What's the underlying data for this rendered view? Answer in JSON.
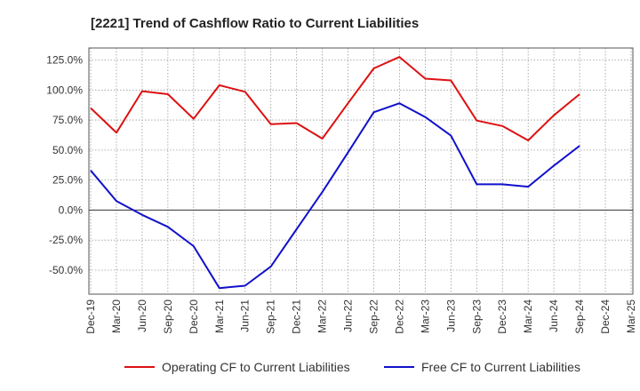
{
  "chart_data": {
    "type": "line",
    "title": "[2221]  Trend of Cashflow Ratio to Current Liabilities",
    "xlabel": "",
    "ylabel": "",
    "x": [
      "Dec-19",
      "Mar-20",
      "Jun-20",
      "Sep-20",
      "Dec-20",
      "Mar-21",
      "Jun-21",
      "Sep-21",
      "Dec-21",
      "Mar-22",
      "Jun-22",
      "Sep-22",
      "Dec-22",
      "Mar-23",
      "Jun-23",
      "Sep-23",
      "Dec-23",
      "Mar-24",
      "Jun-24",
      "Sep-24",
      "Dec-24",
      "Mar-25"
    ],
    "ylim": [
      -70,
      135
    ],
    "yticks": [
      {
        "value": 125,
        "label": "125.0%"
      },
      {
        "value": 100,
        "label": "100.0%"
      },
      {
        "value": 75,
        "label": "75.0%"
      },
      {
        "value": 50,
        "label": "50.0%"
      },
      {
        "value": 25,
        "label": "25.0%"
      },
      {
        "value": 0,
        "label": "0.0%"
      },
      {
        "value": -25,
        "label": "-25.0%"
      },
      {
        "value": -50,
        "label": "-50.0%"
      }
    ],
    "grid": true,
    "legend_position": "bottom",
    "series": [
      {
        "name": "Operating CF to Current Liabilities",
        "color": "#dd1111",
        "values": [
          85,
          64.5,
          99,
          96.5,
          76,
          104,
          98.5,
          71.5,
          72.5,
          59.5,
          89,
          118,
          127.5,
          109.5,
          108,
          74.5,
          70,
          58,
          79,
          96.5,
          null,
          null
        ]
      },
      {
        "name": "Free CF to Current Liabilities",
        "color": "#1111cc",
        "values": [
          33,
          7.5,
          -4,
          -14,
          -30,
          -65,
          -63,
          -47,
          -16,
          15,
          48,
          81.5,
          89,
          77.5,
          62,
          21.5,
          21.5,
          19.5,
          37,
          53.5,
          null,
          null
        ]
      }
    ]
  }
}
